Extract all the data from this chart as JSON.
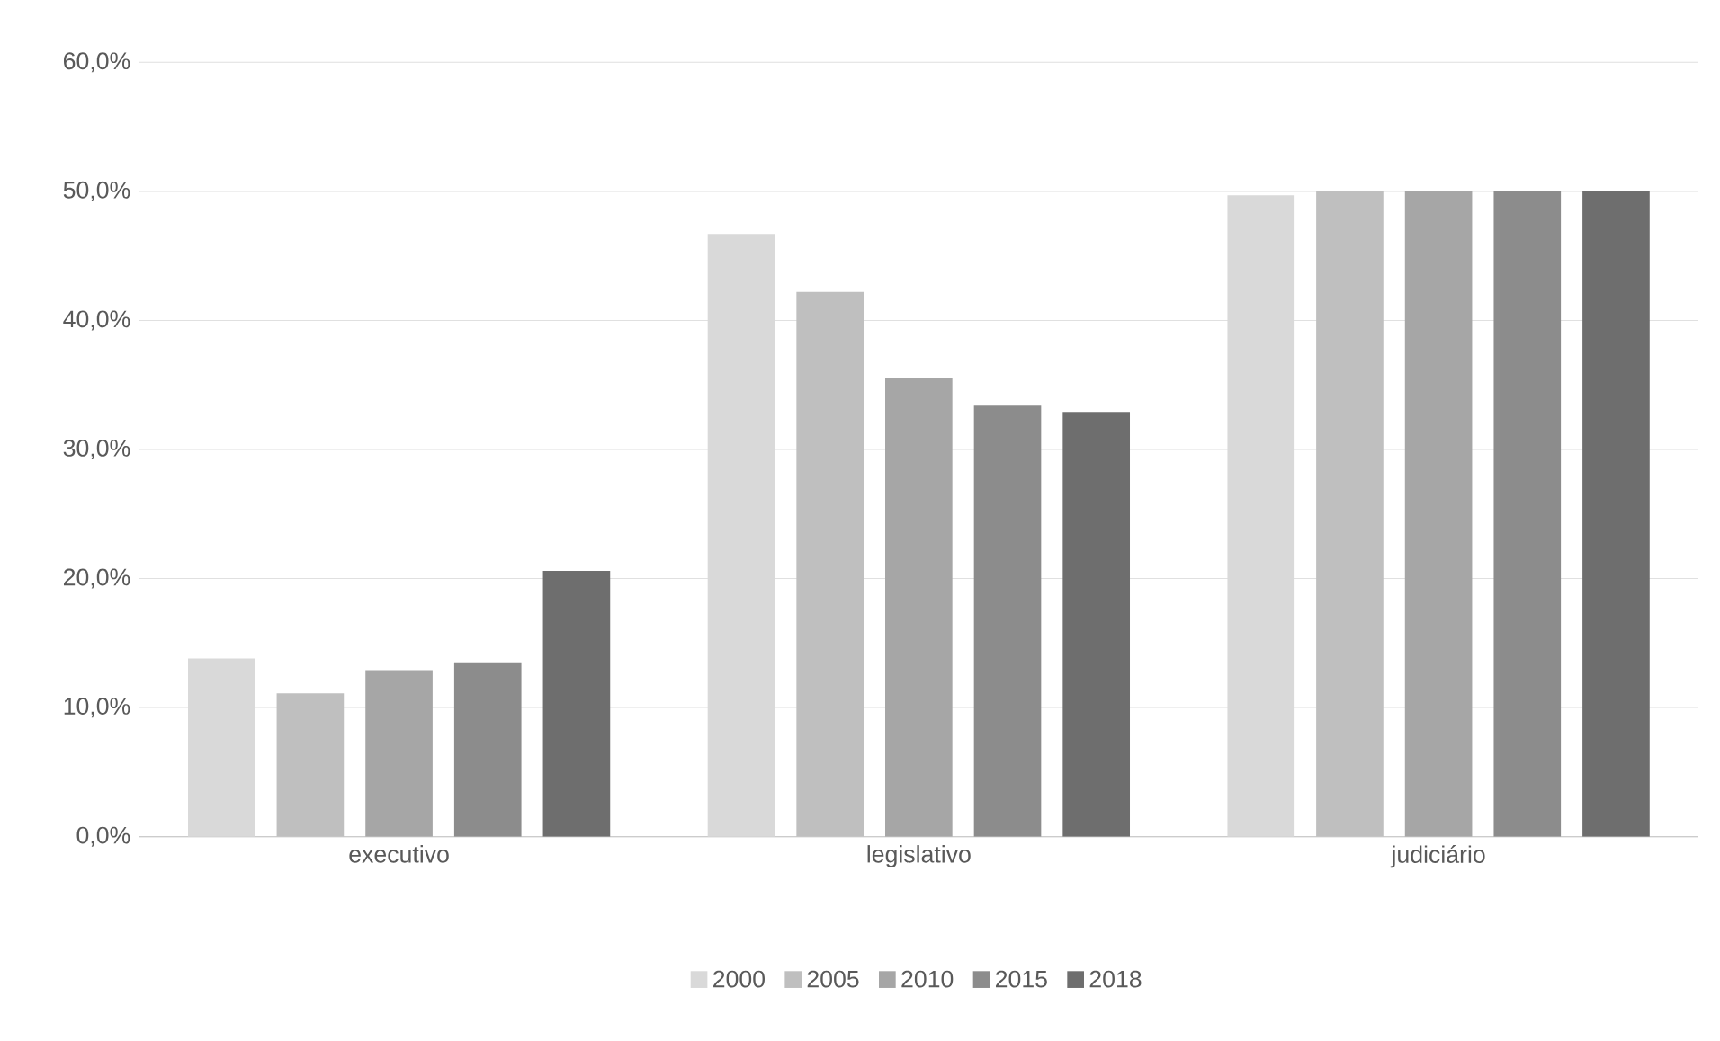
{
  "chart_data": {
    "type": "bar",
    "categories": [
      "executivo",
      "legislativo",
      "judiciário"
    ],
    "series": [
      {
        "name": "2000",
        "color": "#d9d9d9",
        "values": [
          13.8,
          46.7,
          49.7
        ]
      },
      {
        "name": "2005",
        "color": "#bfbfbf",
        "values": [
          11.1,
          42.2,
          50.0
        ]
      },
      {
        "name": "2010",
        "color": "#a6a6a6",
        "values": [
          12.9,
          35.5,
          50.0
        ]
      },
      {
        "name": "2015",
        "color": "#8c8c8c",
        "values": [
          13.5,
          33.4,
          50.0
        ]
      },
      {
        "name": "2018",
        "color": "#6e6e6e",
        "values": [
          20.6,
          32.9,
          50.0
        ]
      }
    ],
    "ylim": [
      0,
      60
    ],
    "yticks": [
      {
        "value": 0,
        "label": "0,0%"
      },
      {
        "value": 10,
        "label": "10,0%"
      },
      {
        "value": 20,
        "label": "20,0%"
      },
      {
        "value": 30,
        "label": "30,0%"
      },
      {
        "value": 40,
        "label": "40,0%"
      },
      {
        "value": 50,
        "label": "50,0%"
      },
      {
        "value": 60,
        "label": "60,0%"
      }
    ],
    "grid": "y",
    "legend": "bottom"
  }
}
